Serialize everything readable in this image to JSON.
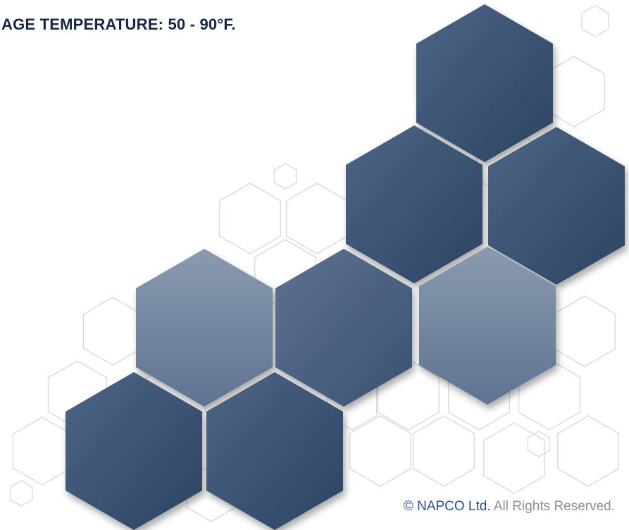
{
  "header": {
    "text": "AGE TEMPERATURE: 50 - 90°F."
  },
  "footer": {
    "brand": "© NAPCO Ltd.",
    "rights": "All Rights Reserved."
  }
}
